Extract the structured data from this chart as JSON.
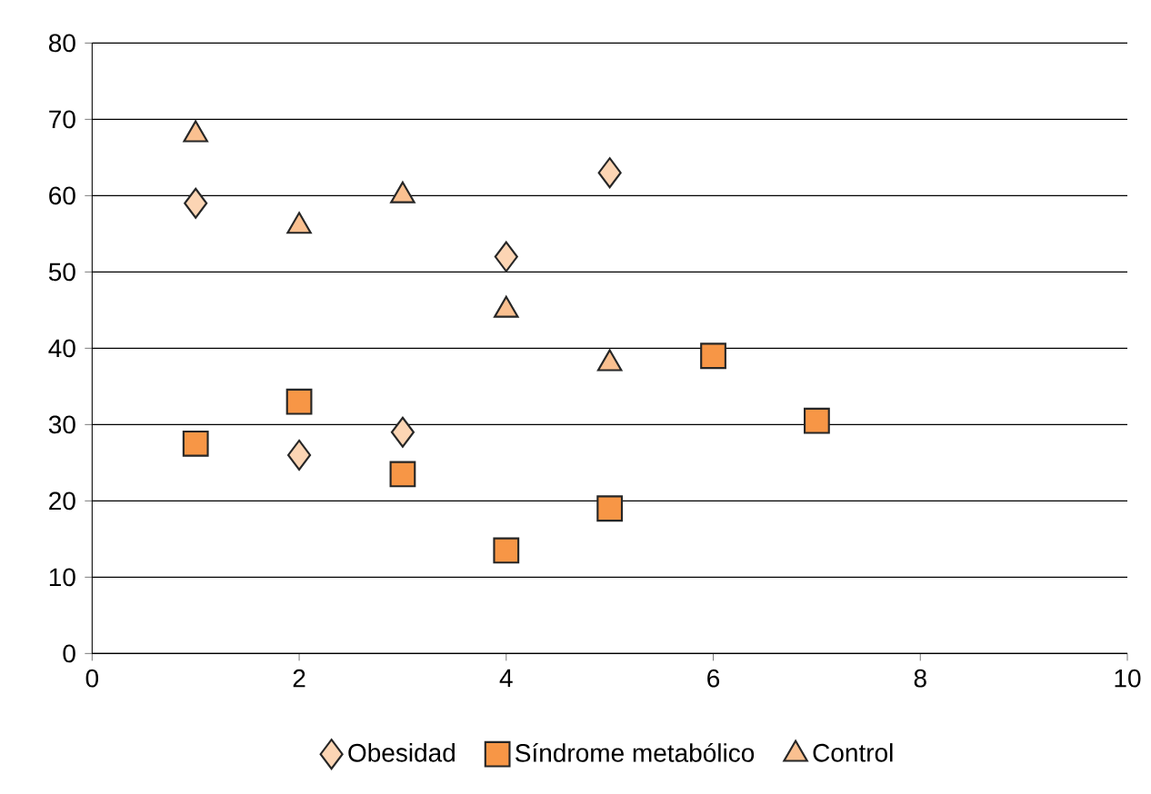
{
  "chart_data": {
    "type": "scatter",
    "xlim": [
      0,
      10
    ],
    "ylim": [
      0,
      80
    ],
    "xticks": [
      0,
      2,
      4,
      6,
      8,
      10
    ],
    "yticks": [
      0,
      10,
      20,
      30,
      40,
      50,
      60,
      70,
      80
    ],
    "grid": "y",
    "legend": "bottom",
    "series": [
      {
        "name": "Obesidad",
        "color": "#fcd5b4",
        "marker": "diamond",
        "x": [
          1,
          2,
          3,
          4,
          5
        ],
        "values": [
          59,
          26,
          29,
          52,
          63
        ]
      },
      {
        "name": "Síndrome metabólico",
        "color": "#f79646",
        "marker": "square",
        "x": [
          1,
          2,
          3,
          4,
          5,
          6,
          7
        ],
        "values": [
          27.5,
          33,
          23.5,
          13.5,
          19,
          39,
          30.5
        ]
      },
      {
        "name": "Control",
        "color": "#fac090",
        "marker": "triangle",
        "x": [
          1,
          2,
          3,
          4,
          5
        ],
        "values": [
          68,
          56,
          60,
          45,
          38
        ]
      }
    ]
  }
}
